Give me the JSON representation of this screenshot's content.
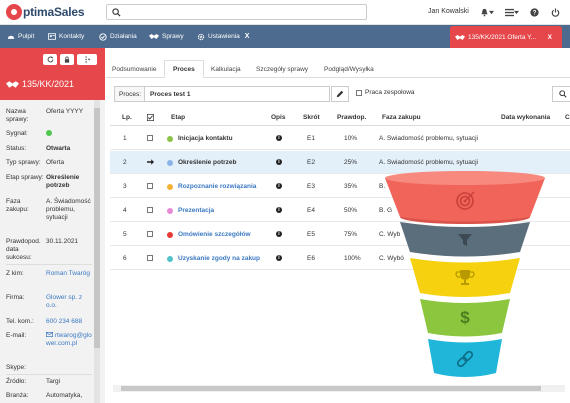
{
  "app": {
    "logo_text": "ptimaSales",
    "logo_letter": "O",
    "user_name": "Jan Kowalski",
    "search_placeholder": ""
  },
  "nav": {
    "items": [
      {
        "label": "Pulpit",
        "icon": "dashboard-icon"
      },
      {
        "label": "Kontakty",
        "icon": "contacts-icon"
      },
      {
        "label": "Działania",
        "icon": "actions-icon"
      },
      {
        "label": "Sprawy",
        "icon": "handshake-icon"
      },
      {
        "label": "Ustawienia",
        "icon": "settings-icon",
        "close": "X"
      }
    ],
    "active_tab": {
      "label": "135/KK/2021 Oferta Y...",
      "close": "X"
    }
  },
  "left_panel": {
    "title": "135/KK/2021",
    "fields": [
      {
        "key": "Nazwa sprawy:",
        "value": "Oferta YYYY"
      },
      {
        "key": "Sygnał:",
        "value": ""
      },
      {
        "key": "Status:",
        "value": "Otwarta"
      },
      {
        "key": "Typ sprawy:",
        "value": "Oferta"
      },
      {
        "key": "Etap sprawy:",
        "value": "Określenie potrzeb"
      },
      {
        "key": "Faza zakupu:",
        "value": "A. Świadomość problemu, sytuacji"
      },
      {
        "key": "Prawdopod. data sukcesu:",
        "value": "30.11.2021"
      },
      {
        "key": "Z kim:",
        "value": "Roman Twaróg"
      },
      {
        "key": "Firma:",
        "value": "Glower sp. z o.o."
      },
      {
        "key": "Tel. kom.:",
        "value": "600 234 688"
      },
      {
        "key": "E-mail:",
        "value": "rtwarog@glower.com.pl"
      },
      {
        "key": "Skype:",
        "value": ""
      },
      {
        "key": "Źródło:",
        "value": "Targi"
      },
      {
        "key": "Branża:",
        "value": "Automatyka,"
      }
    ]
  },
  "tabs": [
    "Podsumowanie",
    "Proces",
    "Kalkulacja",
    "Szczegóły sprawy",
    "Podgląd/Wysyłka"
  ],
  "process": {
    "label": "Proces:",
    "value": "Proces test 1",
    "team_label": "Praca zespołowa"
  },
  "table": {
    "headers": [
      "Lp.",
      "",
      "Etap",
      "Opis",
      "Skrót",
      "Prawdop.",
      "Faza zakupu",
      "Data wykonania",
      "C"
    ],
    "rows": [
      {
        "lp": "1",
        "mark": "checkbox",
        "etap": "Inicjacja kontaktu",
        "dot": "#8bc34a",
        "skrot": "E1",
        "prawdop": "10%",
        "faza": "A. Świadomość problemu, sytuacji",
        "link": false
      },
      {
        "lp": "2",
        "mark": "arrow",
        "etap": "Określenie potrzeb",
        "dot": "#8ab4e8",
        "skrot": "E2",
        "prawdop": "25%",
        "faza": "A. Świadomość problemu, sytuacji",
        "link": false
      },
      {
        "lp": "3",
        "mark": "checkbox",
        "etap": "Rozpoznanie rozwiązania",
        "dot": "#f3b233",
        "skrot": "E3",
        "prawdop": "35%",
        "faza": "B.",
        "link": true
      },
      {
        "lp": "4",
        "mark": "checkbox",
        "etap": "Prezentacja",
        "dot": "#e88ad6",
        "skrot": "E4",
        "prawdop": "50%",
        "faza": "B. G",
        "link": true
      },
      {
        "lp": "5",
        "mark": "checkbox",
        "etap": "Omówienie szczegółów",
        "dot": "#e53935",
        "skrot": "E5",
        "prawdop": "75%",
        "faza": "C. Wyb",
        "link": true
      },
      {
        "lp": "6",
        "mark": "checkbox",
        "etap": "Uzyskanie zgody na zakup",
        "dot": "#4fc3c9",
        "skrot": "E6",
        "prawdop": "100%",
        "faza": "C. Wybó",
        "link": true
      }
    ]
  },
  "funnel": {
    "layers": [
      {
        "color": "#f0645a",
        "icon": "target-icon"
      },
      {
        "color": "#5b6e7c",
        "icon": "filter-icon"
      },
      {
        "color": "#f6d10f",
        "icon": "trophy-icon"
      },
      {
        "color": "#8cc63e",
        "icon": "dollar-icon"
      },
      {
        "color": "#1fb6d9",
        "icon": "link-icon"
      }
    ]
  }
}
